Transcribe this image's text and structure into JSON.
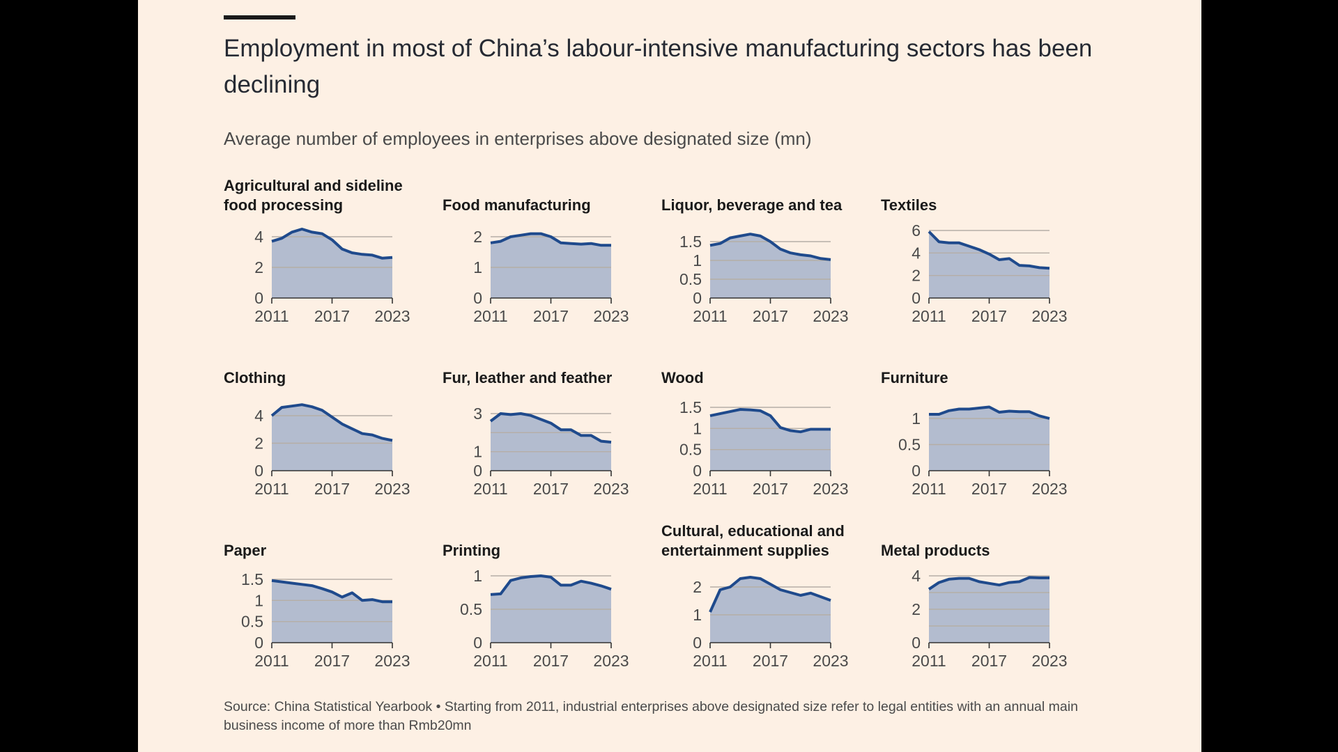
{
  "title": "Employment in most of China’s labour-intensive manufacturing sectors has been declining",
  "subtitle": "Average number of employees in enterprises above designated size (mn)",
  "source": "Source: China Statistical Yearbook • Starting from 2011, industrial enterprises above designated size refer to legal entities with an annual main business income of more than Rmb20mn",
  "colors": {
    "line": "#1f4a8c",
    "area": "#b3bccf",
    "grid": "#b5aea6",
    "background": "#fdf0e4"
  },
  "chart_data": [
    {
      "type": "area",
      "title": "Agricultural and sideline food processing",
      "x": [
        2011,
        2012,
        2013,
        2014,
        2015,
        2016,
        2017,
        2018,
        2019,
        2020,
        2021,
        2022,
        2023
      ],
      "values": [
        3.7,
        3.9,
        4.3,
        4.5,
        4.3,
        4.2,
        3.8,
        3.2,
        2.95,
        2.85,
        2.8,
        2.6,
        2.65
      ],
      "ylim": [
        0,
        4
      ],
      "yticks": [
        0,
        2,
        4
      ],
      "ytick_labels": [
        "0",
        "2",
        "4"
      ],
      "xticks": [
        2011,
        2017,
        2023
      ],
      "grid": true
    },
    {
      "type": "area",
      "title": "Food manufacturing",
      "x": [
        2011,
        2012,
        2013,
        2014,
        2015,
        2016,
        2017,
        2018,
        2019,
        2020,
        2021,
        2022,
        2023
      ],
      "values": [
        1.8,
        1.85,
        2.0,
        2.05,
        2.1,
        2.1,
        2.0,
        1.8,
        1.78,
        1.76,
        1.78,
        1.72,
        1.72
      ],
      "ylim": [
        0,
        2
      ],
      "yticks": [
        0,
        1,
        2
      ],
      "ytick_labels": [
        "0",
        "1",
        "2"
      ],
      "xticks": [
        2011,
        2017,
        2023
      ],
      "grid": true
    },
    {
      "type": "area",
      "title": "Liquor, beverage and tea",
      "x": [
        2011,
        2012,
        2013,
        2014,
        2015,
        2016,
        2017,
        2018,
        2019,
        2020,
        2021,
        2022,
        2023
      ],
      "values": [
        1.4,
        1.45,
        1.6,
        1.65,
        1.7,
        1.65,
        1.5,
        1.3,
        1.2,
        1.15,
        1.12,
        1.05,
        1.02
      ],
      "ylim": [
        0,
        1.5
      ],
      "yticks": [
        0,
        0.5,
        1,
        1.5
      ],
      "ytick_labels": [
        "0",
        "0.5",
        "1",
        "1.5"
      ],
      "xticks": [
        2011,
        2017,
        2023
      ],
      "grid": true
    },
    {
      "type": "area",
      "title": "Textiles",
      "x": [
        2011,
        2012,
        2013,
        2014,
        2015,
        2016,
        2017,
        2018,
        2019,
        2020,
        2021,
        2022,
        2023
      ],
      "values": [
        5.9,
        5.0,
        4.9,
        4.9,
        4.6,
        4.3,
        3.9,
        3.4,
        3.5,
        2.9,
        2.85,
        2.7,
        2.65
      ],
      "ylim": [
        0,
        6
      ],
      "yticks": [
        0,
        2,
        4,
        6
      ],
      "ytick_labels": [
        "0",
        "2",
        "4",
        "6"
      ],
      "xticks": [
        2011,
        2017,
        2023
      ],
      "grid": true
    },
    {
      "type": "area",
      "title": "Clothing",
      "x": [
        2011,
        2012,
        2013,
        2014,
        2015,
        2016,
        2017,
        2018,
        2019,
        2020,
        2021,
        2022,
        2023
      ],
      "values": [
        4.0,
        4.6,
        4.7,
        4.8,
        4.65,
        4.4,
        3.9,
        3.4,
        3.05,
        2.7,
        2.6,
        2.35,
        2.2
      ],
      "ylim": [
        0,
        4
      ],
      "yticks": [
        0,
        2,
        4
      ],
      "ytick_labels": [
        "0",
        "2",
        "4"
      ],
      "xticks": [
        2011,
        2017,
        2023
      ],
      "grid": true
    },
    {
      "type": "area",
      "title": "Fur, leather and feather",
      "x": [
        2011,
        2012,
        2013,
        2014,
        2015,
        2016,
        2017,
        2018,
        2019,
        2020,
        2021,
        2022,
        2023
      ],
      "values": [
        2.6,
        3.0,
        2.95,
        3.0,
        2.9,
        2.7,
        2.5,
        2.15,
        2.15,
        1.85,
        1.85,
        1.55,
        1.5
      ],
      "ylim": [
        0,
        3
      ],
      "yticks": [
        0,
        1,
        2,
        3
      ],
      "ytick_labels": [
        "0",
        "1",
        "",
        "3"
      ],
      "xticks": [
        2011,
        2017,
        2023
      ],
      "grid": true
    },
    {
      "type": "area",
      "title": "Wood",
      "x": [
        2011,
        2012,
        2013,
        2014,
        2015,
        2016,
        2017,
        2018,
        2019,
        2020,
        2021,
        2022,
        2023
      ],
      "values": [
        1.3,
        1.35,
        1.4,
        1.45,
        1.44,
        1.42,
        1.3,
        1.02,
        0.95,
        0.92,
        0.98,
        0.98,
        0.98
      ],
      "ylim": [
        0,
        1.5
      ],
      "yticks": [
        0,
        0.5,
        1,
        1.5
      ],
      "ytick_labels": [
        "0",
        "0.5",
        "1",
        "1.5"
      ],
      "xticks": [
        2011,
        2017,
        2023
      ],
      "grid": true
    },
    {
      "type": "area",
      "title": "Furniture",
      "x": [
        2011,
        2012,
        2013,
        2014,
        2015,
        2016,
        2017,
        2018,
        2019,
        2020,
        2021,
        2022,
        2023
      ],
      "values": [
        1.08,
        1.08,
        1.15,
        1.18,
        1.18,
        1.2,
        1.22,
        1.12,
        1.14,
        1.13,
        1.13,
        1.05,
        1.0
      ],
      "ylim": [
        0,
        1
      ],
      "yticks": [
        0,
        0.5,
        1
      ],
      "ytick_labels": [
        "0",
        "0.5",
        "1"
      ],
      "xticks": [
        2011,
        2017,
        2023
      ],
      "grid": true
    },
    {
      "type": "area",
      "title": "Paper",
      "x": [
        2011,
        2012,
        2013,
        2014,
        2015,
        2016,
        2017,
        2018,
        2019,
        2020,
        2021,
        2022,
        2023
      ],
      "values": [
        1.47,
        1.44,
        1.41,
        1.38,
        1.35,
        1.28,
        1.2,
        1.08,
        1.18,
        1.0,
        1.02,
        0.97,
        0.97
      ],
      "ylim": [
        0,
        1.5
      ],
      "yticks": [
        0,
        0.5,
        1,
        1.5
      ],
      "ytick_labels": [
        "0",
        "0.5",
        "1",
        "1.5"
      ],
      "xticks": [
        2011,
        2017,
        2023
      ],
      "grid": true
    },
    {
      "type": "area",
      "title": "Printing",
      "x": [
        2011,
        2012,
        2013,
        2014,
        2015,
        2016,
        2017,
        2018,
        2019,
        2020,
        2021,
        2022,
        2023
      ],
      "values": [
        0.72,
        0.73,
        0.93,
        0.97,
        0.99,
        1.0,
        0.98,
        0.86,
        0.86,
        0.92,
        0.89,
        0.85,
        0.8
      ],
      "ylim": [
        0,
        1
      ],
      "yticks": [
        0,
        0.5,
        1
      ],
      "ytick_labels": [
        "0",
        "0.5",
        "1"
      ],
      "xticks": [
        2011,
        2017,
        2023
      ],
      "grid": true
    },
    {
      "type": "area",
      "title": "Cultural, educational and entertainment supplies",
      "x": [
        2011,
        2012,
        2013,
        2014,
        2015,
        2016,
        2017,
        2018,
        2019,
        2020,
        2021,
        2022,
        2023
      ],
      "values": [
        1.1,
        1.9,
        2.0,
        2.3,
        2.35,
        2.3,
        2.1,
        1.9,
        1.8,
        1.7,
        1.78,
        1.65,
        1.52
      ],
      "ylim": [
        0,
        2
      ],
      "yticks": [
        0,
        1,
        2
      ],
      "ytick_labels": [
        "0",
        "1",
        "2"
      ],
      "xticks": [
        2011,
        2017,
        2023
      ],
      "grid": true
    },
    {
      "type": "area",
      "title": "Metal products",
      "x": [
        2011,
        2012,
        2013,
        2014,
        2015,
        2016,
        2017,
        2018,
        2019,
        2020,
        2021,
        2022,
        2023
      ],
      "values": [
        3.2,
        3.6,
        3.8,
        3.85,
        3.85,
        3.65,
        3.55,
        3.45,
        3.6,
        3.65,
        3.9,
        3.88,
        3.88
      ],
      "ylim": [
        0,
        4
      ],
      "yticks": [
        0,
        1,
        2,
        3,
        4
      ],
      "ytick_labels": [
        "0",
        "",
        "2",
        "",
        "4"
      ],
      "xticks": [
        2011,
        2017,
        2023
      ],
      "grid": true
    }
  ]
}
